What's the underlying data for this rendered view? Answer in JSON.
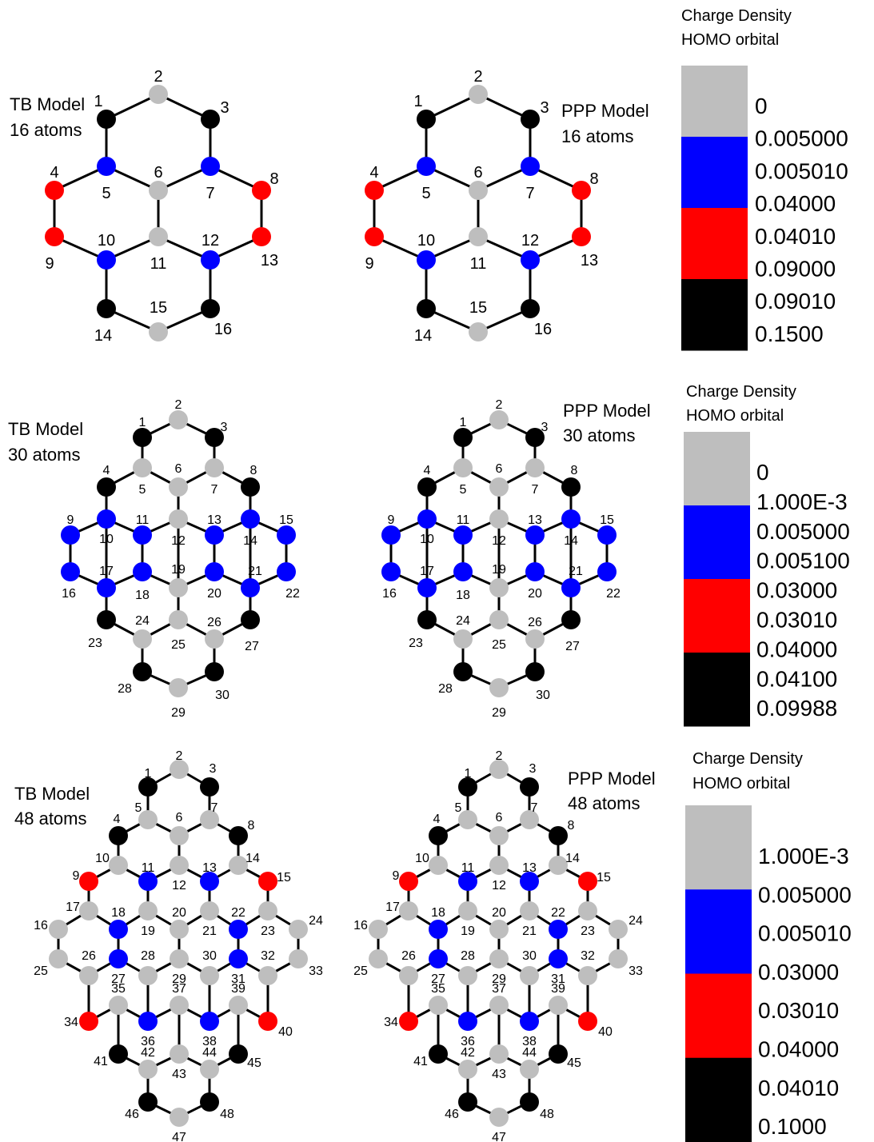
{
  "colors": {
    "gray": "#bebebe",
    "blue": "#0000ff",
    "red": "#ff0000",
    "black": "#000000"
  },
  "panels": [
    {
      "title": "TB Model",
      "subtitle": "16 atoms",
      "atoms": [
        {
          "n": "1",
          "c": "black"
        },
        {
          "n": "2",
          "c": "gray"
        },
        {
          "n": "3",
          "c": "black"
        },
        {
          "n": "4",
          "c": "red"
        },
        {
          "n": "5",
          "c": "blue"
        },
        {
          "n": "6",
          "c": "gray"
        },
        {
          "n": "7",
          "c": "blue"
        },
        {
          "n": "8",
          "c": "red"
        },
        {
          "n": "9",
          "c": "red"
        },
        {
          "n": "10",
          "c": "blue"
        },
        {
          "n": "11",
          "c": "gray"
        },
        {
          "n": "12",
          "c": "blue"
        },
        {
          "n": "13",
          "c": "red"
        },
        {
          "n": "14",
          "c": "black"
        },
        {
          "n": "15",
          "c": "gray"
        },
        {
          "n": "16",
          "c": "black"
        }
      ]
    },
    {
      "title": "PPP Model",
      "subtitle": "16 atoms",
      "atoms": [
        {
          "n": "1",
          "c": "black"
        },
        {
          "n": "2",
          "c": "gray"
        },
        {
          "n": "3",
          "c": "black"
        },
        {
          "n": "4",
          "c": "red"
        },
        {
          "n": "5",
          "c": "blue"
        },
        {
          "n": "6",
          "c": "gray"
        },
        {
          "n": "7",
          "c": "blue"
        },
        {
          "n": "8",
          "c": "red"
        },
        {
          "n": "9",
          "c": "red"
        },
        {
          "n": "10",
          "c": "blue"
        },
        {
          "n": "11",
          "c": "gray"
        },
        {
          "n": "12",
          "c": "blue"
        },
        {
          "n": "13",
          "c": "red"
        },
        {
          "n": "14",
          "c": "black"
        },
        {
          "n": "15",
          "c": "gray"
        },
        {
          "n": "16",
          "c": "black"
        }
      ]
    },
    {
      "title": "TB Model",
      "subtitle": "30 atoms",
      "atoms": [
        {
          "n": "1",
          "c": "black"
        },
        {
          "n": "2",
          "c": "gray"
        },
        {
          "n": "3",
          "c": "black"
        },
        {
          "n": "4",
          "c": "black"
        },
        {
          "n": "5",
          "c": "gray"
        },
        {
          "n": "6",
          "c": "gray"
        },
        {
          "n": "7",
          "c": "gray"
        },
        {
          "n": "8",
          "c": "black"
        },
        {
          "n": "9",
          "c": "blue"
        },
        {
          "n": "10",
          "c": "blue"
        },
        {
          "n": "11",
          "c": "blue"
        },
        {
          "n": "12",
          "c": "gray"
        },
        {
          "n": "13",
          "c": "blue"
        },
        {
          "n": "14",
          "c": "blue"
        },
        {
          "n": "15",
          "c": "blue"
        },
        {
          "n": "16",
          "c": "blue"
        },
        {
          "n": "17",
          "c": "blue"
        },
        {
          "n": "18",
          "c": "blue"
        },
        {
          "n": "19",
          "c": "gray"
        },
        {
          "n": "20",
          "c": "blue"
        },
        {
          "n": "21",
          "c": "blue"
        },
        {
          "n": "22",
          "c": "blue"
        },
        {
          "n": "23",
          "c": "black"
        },
        {
          "n": "24",
          "c": "gray"
        },
        {
          "n": "25",
          "c": "gray"
        },
        {
          "n": "26",
          "c": "gray"
        },
        {
          "n": "27",
          "c": "black"
        },
        {
          "n": "28",
          "c": "black"
        },
        {
          "n": "29",
          "c": "gray"
        },
        {
          "n": "30",
          "c": "black"
        }
      ]
    },
    {
      "title": "PPP Model",
      "subtitle": "30 atoms",
      "atoms": [
        {
          "n": "1",
          "c": "black"
        },
        {
          "n": "2",
          "c": "gray"
        },
        {
          "n": "3",
          "c": "black"
        },
        {
          "n": "4",
          "c": "black"
        },
        {
          "n": "5",
          "c": "gray"
        },
        {
          "n": "6",
          "c": "gray"
        },
        {
          "n": "7",
          "c": "gray"
        },
        {
          "n": "8",
          "c": "black"
        },
        {
          "n": "9",
          "c": "blue"
        },
        {
          "n": "10",
          "c": "blue"
        },
        {
          "n": "11",
          "c": "blue"
        },
        {
          "n": "12",
          "c": "gray"
        },
        {
          "n": "13",
          "c": "blue"
        },
        {
          "n": "14",
          "c": "blue"
        },
        {
          "n": "15",
          "c": "blue"
        },
        {
          "n": "16",
          "c": "blue"
        },
        {
          "n": "17",
          "c": "blue"
        },
        {
          "n": "18",
          "c": "blue"
        },
        {
          "n": "19",
          "c": "gray"
        },
        {
          "n": "20",
          "c": "blue"
        },
        {
          "n": "21",
          "c": "blue"
        },
        {
          "n": "22",
          "c": "blue"
        },
        {
          "n": "23",
          "c": "black"
        },
        {
          "n": "24",
          "c": "gray"
        },
        {
          "n": "25",
          "c": "gray"
        },
        {
          "n": "26",
          "c": "gray"
        },
        {
          "n": "27",
          "c": "black"
        },
        {
          "n": "28",
          "c": "black"
        },
        {
          "n": "29",
          "c": "gray"
        },
        {
          "n": "30",
          "c": "black"
        }
      ]
    },
    {
      "title": "TB Model",
      "subtitle": "48 atoms",
      "atoms": [
        {
          "n": "1",
          "c": "black"
        },
        {
          "n": "2",
          "c": "gray"
        },
        {
          "n": "3",
          "c": "black"
        },
        {
          "n": "4",
          "c": "black"
        },
        {
          "n": "5",
          "c": "gray"
        },
        {
          "n": "6",
          "c": "gray"
        },
        {
          "n": "7",
          "c": "gray"
        },
        {
          "n": "8",
          "c": "black"
        },
        {
          "n": "9",
          "c": "red"
        },
        {
          "n": "10",
          "c": "gray"
        },
        {
          "n": "11",
          "c": "blue"
        },
        {
          "n": "12",
          "c": "gray"
        },
        {
          "n": "13",
          "c": "blue"
        },
        {
          "n": "14",
          "c": "gray"
        },
        {
          "n": "15",
          "c": "red"
        },
        {
          "n": "16",
          "c": "gray"
        },
        {
          "n": "17",
          "c": "gray"
        },
        {
          "n": "18",
          "c": "blue"
        },
        {
          "n": "19",
          "c": "gray"
        },
        {
          "n": "20",
          "c": "gray"
        },
        {
          "n": "21",
          "c": "gray"
        },
        {
          "n": "22",
          "c": "blue"
        },
        {
          "n": "23",
          "c": "gray"
        },
        {
          "n": "24",
          "c": "gray"
        },
        {
          "n": "25",
          "c": "gray"
        },
        {
          "n": "26",
          "c": "gray"
        },
        {
          "n": "27",
          "c": "blue"
        },
        {
          "n": "28",
          "c": "gray"
        },
        {
          "n": "29",
          "c": "gray"
        },
        {
          "n": "30",
          "c": "gray"
        },
        {
          "n": "31",
          "c": "blue"
        },
        {
          "n": "32",
          "c": "gray"
        },
        {
          "n": "33",
          "c": "gray"
        },
        {
          "n": "34",
          "c": "red"
        },
        {
          "n": "35",
          "c": "gray"
        },
        {
          "n": "36",
          "c": "blue"
        },
        {
          "n": "37",
          "c": "gray"
        },
        {
          "n": "38",
          "c": "blue"
        },
        {
          "n": "39",
          "c": "gray"
        },
        {
          "n": "40",
          "c": "red"
        },
        {
          "n": "41",
          "c": "black"
        },
        {
          "n": "42",
          "c": "gray"
        },
        {
          "n": "43",
          "c": "gray"
        },
        {
          "n": "44",
          "c": "gray"
        },
        {
          "n": "45",
          "c": "black"
        },
        {
          "n": "46",
          "c": "black"
        },
        {
          "n": "47",
          "c": "gray"
        },
        {
          "n": "48",
          "c": "black"
        }
      ]
    },
    {
      "title": "PPP Model",
      "subtitle": "48 atoms",
      "atoms": [
        {
          "n": "1",
          "c": "black"
        },
        {
          "n": "2",
          "c": "gray"
        },
        {
          "n": "3",
          "c": "black"
        },
        {
          "n": "4",
          "c": "black"
        },
        {
          "n": "5",
          "c": "gray"
        },
        {
          "n": "6",
          "c": "gray"
        },
        {
          "n": "7",
          "c": "gray"
        },
        {
          "n": "8",
          "c": "black"
        },
        {
          "n": "9",
          "c": "red"
        },
        {
          "n": "10",
          "c": "gray"
        },
        {
          "n": "11",
          "c": "blue"
        },
        {
          "n": "12",
          "c": "gray"
        },
        {
          "n": "13",
          "c": "blue"
        },
        {
          "n": "14",
          "c": "gray"
        },
        {
          "n": "15",
          "c": "red"
        },
        {
          "n": "16",
          "c": "gray"
        },
        {
          "n": "17",
          "c": "gray"
        },
        {
          "n": "18",
          "c": "blue"
        },
        {
          "n": "19",
          "c": "gray"
        },
        {
          "n": "20",
          "c": "gray"
        },
        {
          "n": "21",
          "c": "gray"
        },
        {
          "n": "22",
          "c": "blue"
        },
        {
          "n": "23",
          "c": "gray"
        },
        {
          "n": "24",
          "c": "gray"
        },
        {
          "n": "25",
          "c": "gray"
        },
        {
          "n": "26",
          "c": "gray"
        },
        {
          "n": "27",
          "c": "blue"
        },
        {
          "n": "28",
          "c": "gray"
        },
        {
          "n": "29",
          "c": "gray"
        },
        {
          "n": "30",
          "c": "gray"
        },
        {
          "n": "31",
          "c": "blue"
        },
        {
          "n": "32",
          "c": "gray"
        },
        {
          "n": "33",
          "c": "gray"
        },
        {
          "n": "34",
          "c": "red"
        },
        {
          "n": "35",
          "c": "gray"
        },
        {
          "n": "36",
          "c": "blue"
        },
        {
          "n": "37",
          "c": "gray"
        },
        {
          "n": "38",
          "c": "blue"
        },
        {
          "n": "39",
          "c": "gray"
        },
        {
          "n": "40",
          "c": "red"
        },
        {
          "n": "41",
          "c": "black"
        },
        {
          "n": "42",
          "c": "gray"
        },
        {
          "n": "43",
          "c": "gray"
        },
        {
          "n": "44",
          "c": "gray"
        },
        {
          "n": "45",
          "c": "black"
        },
        {
          "n": "46",
          "c": "black"
        },
        {
          "n": "47",
          "c": "gray"
        },
        {
          "n": "48",
          "c": "black"
        }
      ]
    }
  ],
  "legends": [
    {
      "title1": "Charge Density",
      "title2": "HOMO orbital",
      "bands": [
        "gray",
        "blue",
        "red",
        "black"
      ],
      "ticks": [
        "0",
        "0.005000",
        "0.005010",
        "0.04000",
        "0.04010",
        "0.09000",
        "0.09010",
        "0.1500"
      ]
    },
    {
      "title1": "Charge Density",
      "title2": "HOMO orbital",
      "bands": [
        "gray",
        "blue",
        "red",
        "black"
      ],
      "ticks": [
        "0",
        "1.000E-3",
        "0.005000",
        "0.005100",
        "0.03000",
        "0.03010",
        "0.04000",
        "0.04100",
        "0.09988"
      ]
    },
    {
      "title1": "Charge Density",
      "title2": "HOMO orbital",
      "bands": [
        "gray",
        "blue",
        "red",
        "black"
      ],
      "ticks": [
        "1.000E-3",
        "0.005000",
        "0.005010",
        "0.03000",
        "0.03010",
        "0.04000",
        "0.04010",
        "0.1000"
      ]
    }
  ]
}
